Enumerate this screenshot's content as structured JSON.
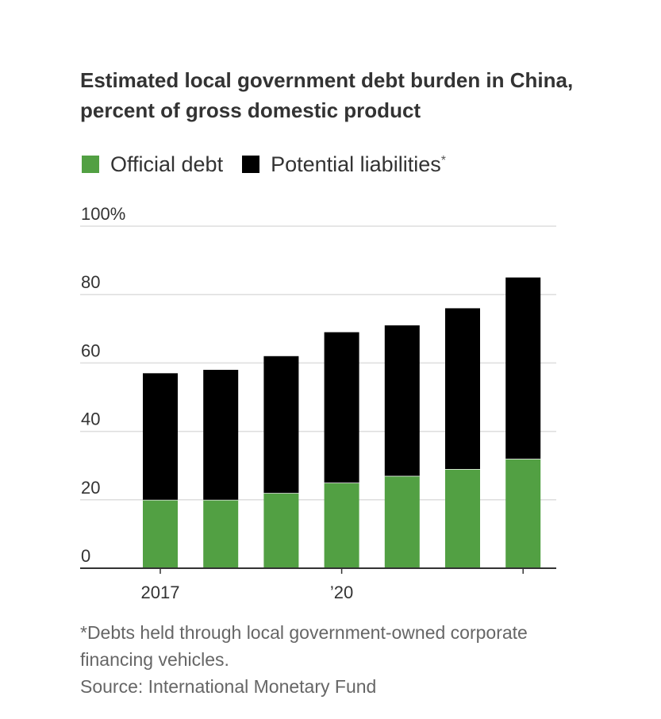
{
  "chart_data": {
    "type": "bar",
    "stacked": true,
    "title": "Estimated local government debt burden in China, percent of gross domestic product",
    "categories": [
      "2017",
      "",
      "",
      "’20",
      "",
      "",
      ""
    ],
    "series": [
      {
        "name": "Official debt",
        "color": "#52a043",
        "values": [
          20,
          20,
          22,
          25,
          27,
          29,
          32
        ]
      },
      {
        "name": "Potential liabilities",
        "footnote_marker": "*",
        "color": "#000000",
        "values": [
          37,
          38,
          40,
          44,
          44,
          47,
          53
        ]
      }
    ],
    "ylim": [
      0,
      100
    ],
    "yticks": [
      0,
      20,
      40,
      60,
      80,
      100
    ],
    "ytick_labels": [
      "0",
      "20",
      "40",
      "60",
      "80",
      "100%"
    ],
    "grid": true,
    "legend_position": "top-left"
  },
  "notes": {
    "footnote": "*Debts held through local government-owned corporate financing vehicles.",
    "source": "Source: International Monetary Fund"
  }
}
